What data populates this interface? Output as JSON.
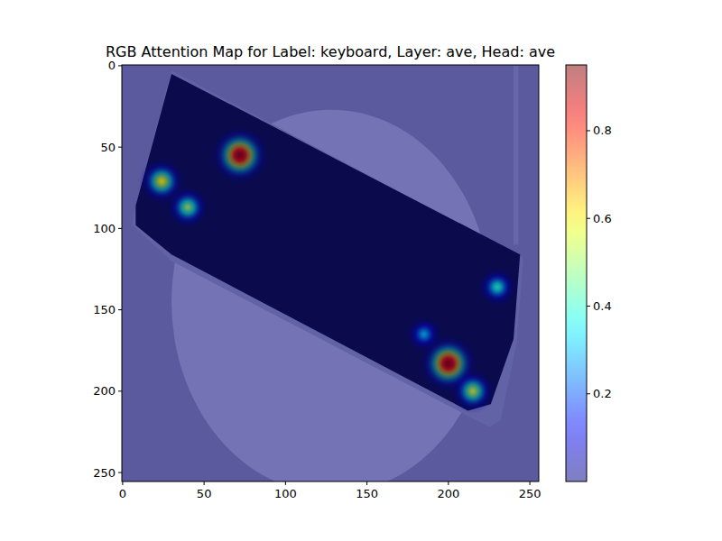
{
  "chart_data": {
    "type": "heatmap",
    "title": "RGB Attention Map for Label: keyboard, Layer: ave, Head: ave",
    "xlim": [
      -0.5,
      255.5
    ],
    "ylim": [
      255.5,
      -0.5
    ],
    "xticks": [
      0,
      50,
      100,
      150,
      200,
      250
    ],
    "yticks": [
      0,
      50,
      100,
      150,
      200,
      250
    ],
    "hotspots": {
      "x": [
        72,
        200,
        24,
        40,
        230,
        215,
        185
      ],
      "y": [
        55,
        183,
        71,
        87,
        136,
        200,
        165
      ],
      "values": [
        0.94,
        0.94,
        0.6,
        0.5,
        0.4,
        0.55,
        0.3
      ]
    },
    "colorbar": {
      "range": [
        0,
        0.95
      ],
      "ticks": [
        0.2,
        0.4,
        0.6,
        0.8
      ]
    }
  }
}
